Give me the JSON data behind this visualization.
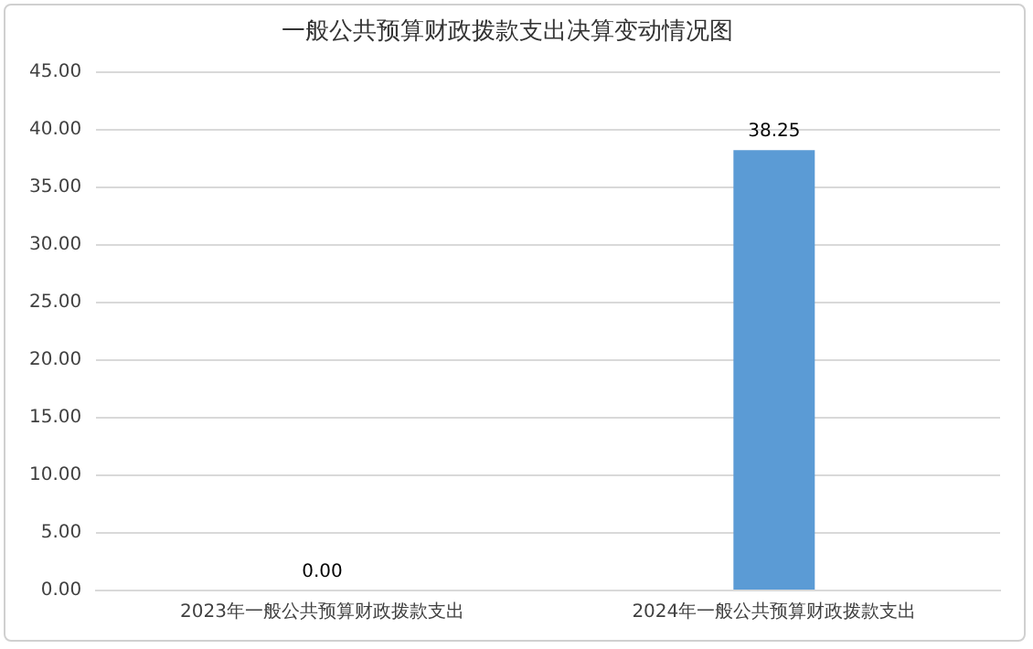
{
  "chart_data": {
    "type": "bar",
    "title": "一般公共预算财政拨款支出决算变动情况图",
    "categories": [
      "2023年一般公共预算财政拨款支出",
      "2024年一般公共预算财政拨款支出"
    ],
    "values": [
      0,
      38.25
    ],
    "value_labels": [
      "0.00",
      "38.25"
    ],
    "color": "#5b9bd5",
    "ylim": [
      0,
      45
    ],
    "yticks": [
      {
        "value": 0,
        "label": "0.00"
      },
      {
        "value": 5,
        "label": "5.00"
      },
      {
        "value": 10,
        "label": "10.00"
      },
      {
        "value": 15,
        "label": "15.00"
      },
      {
        "value": 20,
        "label": "20.00"
      },
      {
        "value": 25,
        "label": "25.00"
      },
      {
        "value": 30,
        "label": "30.00"
      },
      {
        "value": 35,
        "label": "35.00"
      },
      {
        "value": 40,
        "label": "40.00"
      },
      {
        "value": 45,
        "label": "45.00"
      }
    ],
    "grid": "y",
    "legend": false
  }
}
